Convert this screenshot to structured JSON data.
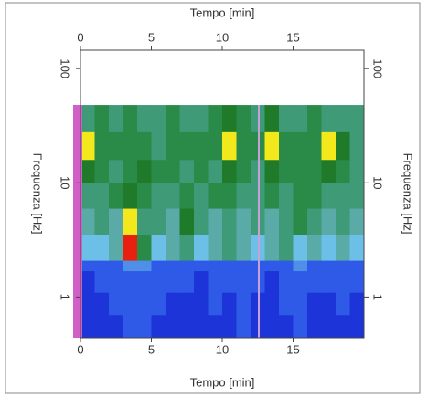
{
  "chart_data": {
    "type": "heatmap",
    "x_label": "Tempo [min]",
    "x2_label": "Tempo [min]",
    "y_label": "Frequenza [Hz]",
    "y2_label": "Frequenza [Hz]",
    "xlim": [
      0,
      20
    ],
    "xticks": [
      0,
      5,
      10,
      15
    ],
    "ylim": [
      0.44,
      145
    ],
    "yticks": [
      1,
      10,
      100
    ],
    "log_y": true,
    "x_bins": [
      0,
      1,
      2,
      3,
      4,
      5,
      6,
      7,
      8,
      9,
      10,
      11,
      12,
      13,
      14,
      15,
      16,
      17,
      18,
      19,
      20
    ],
    "y_bins": [
      0.44,
      0.7,
      1.1,
      1.7,
      2.1,
      3.5,
      6,
      10,
      16,
      28,
      48
    ],
    "colormap": [
      "#1c34d8",
      "#2f5ae8",
      "#4f8fe8",
      "#6cc0e8",
      "#5aaaa8",
      "#3f9a78",
      "#2a8a48",
      "#1f7a2a",
      "#9ad028",
      "#f2e81c",
      "#e82010"
    ],
    "z": [
      [
        0.8,
        1.0,
        1.2,
        1.4,
        1.5,
        1.2,
        1.0,
        0.9,
        1.1,
        1.0,
        0.9,
        1.3,
        1.0,
        0.8,
        1.1,
        1.4,
        1.0,
        0.9,
        1.2,
        1.0
      ],
      [
        1.0,
        1.2,
        1.3,
        1.6,
        1.8,
        1.4,
        1.1,
        1.2,
        1.0,
        1.3,
        1.1,
        1.5,
        1.2,
        1.0,
        1.3,
        1.6,
        1.2,
        1.1,
        1.4,
        1.2
      ],
      [
        1.2,
        1.4,
        1.5,
        1.8,
        2.0,
        1.6,
        1.3,
        1.4,
        1.2,
        1.5,
        1.3,
        1.7,
        1.4,
        1.2,
        1.5,
        1.8,
        1.4,
        1.3,
        1.6,
        1.4
      ],
      [
        1.6,
        1.8,
        1.9,
        2.6,
        3.0,
        2.0,
        1.7,
        1.8,
        1.6,
        1.9,
        1.7,
        2.1,
        1.8,
        1.6,
        1.9,
        2.2,
        1.8,
        1.7,
        2.0,
        1.8
      ],
      [
        3.5,
        3.8,
        4.2,
        10.0,
        6.0,
        4.0,
        4.5,
        5.5,
        3.8,
        4.2,
        5.0,
        4.6,
        3.9,
        4.4,
        5.8,
        4.0,
        4.3,
        3.7,
        4.1,
        3.9
      ],
      [
        4.5,
        5.0,
        4.8,
        9.0,
        5.5,
        5.2,
        4.6,
        7.2,
        5.0,
        4.7,
        5.6,
        4.9,
        5.3,
        4.5,
        5.8,
        6.4,
        5.1,
        4.8,
        5.5,
        4.6
      ],
      [
        5.0,
        5.6,
        6.5,
        7.2,
        6.0,
        5.3,
        5.8,
        6.0,
        5.5,
        5.9,
        6.2,
        5.7,
        5.4,
        6.3,
        5.6,
        5.9,
        6.4,
        5.2,
        5.7,
        5.0
      ],
      [
        7.0,
        6.0,
        5.8,
        6.4,
        6.8,
        6.2,
        5.9,
        5.6,
        6.1,
        5.8,
        7.2,
        6.6,
        5.7,
        6.9,
        6.0,
        6.3,
        5.9,
        6.8,
        6.0,
        5.6
      ],
      [
        9.1,
        6.5,
        6.0,
        6.3,
        6.0,
        5.8,
        6.4,
        6.1,
        5.9,
        6.2,
        9.0,
        6.4,
        5.9,
        8.9,
        6.3,
        6.0,
        6.5,
        9.0,
        7.2,
        5.8
      ],
      [
        5.5,
        6.2,
        5.6,
        6.0,
        5.8,
        5.4,
        6.1,
        5.5,
        5.7,
        5.9,
        7.6,
        6.0,
        5.4,
        7.0,
        5.8,
        5.6,
        6.0,
        5.5,
        5.8,
        5.3
      ]
    ]
  }
}
